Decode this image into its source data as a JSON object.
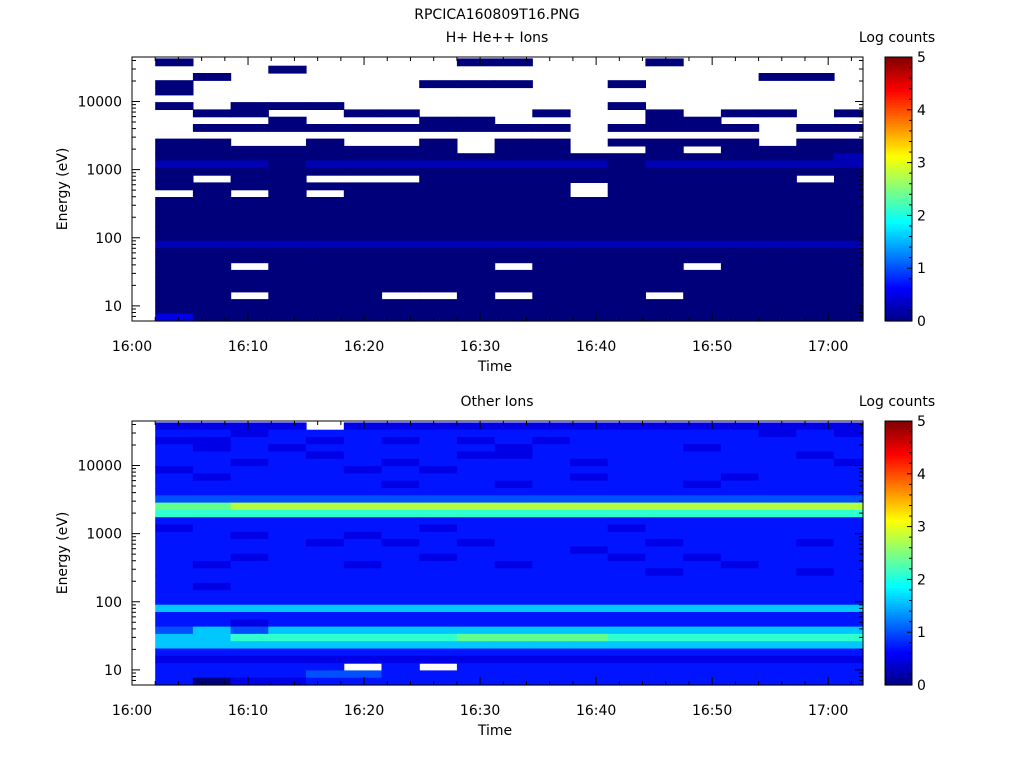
{
  "figure_title": "RPCICA160809T16.PNG",
  "chart_data": [
    {
      "type": "heatmap",
      "title": "H+ He++ Ions",
      "xlabel": "Time",
      "ylabel": "Energy (eV)",
      "yscale": "log",
      "x_ticks": [
        "16:00",
        "16:10",
        "16:20",
        "16:30",
        "16:40",
        "16:50",
        "17:00"
      ],
      "y_ticks": [
        "10",
        "100",
        "1000",
        "10000"
      ],
      "xlim": [
        "16:00",
        "17:03"
      ],
      "ylim": [
        6,
        45000
      ],
      "data_start": "16:02",
      "bin_minutes": 3.25,
      "colorbar": {
        "label": "Log counts",
        "ticks": [
          "0",
          "1",
          "2",
          "3",
          "4",
          "5"
        ],
        "range": [
          0,
          5
        ]
      },
      "time_bins": 19,
      "energy_bins": 36,
      "rows": [
        "1000000011000100000",
        "0001000000000000000",
        "0100000000000000110",
        "1000000111001000000",
        "1000000000000000000",
        "0000000000000000000",
        "1011100000001000000",
        "0110011000100101101",
        "0001000110000110000",
        "0111111111101111011",
        "0000000000000000000",
        "1100100101101111011",
        "1111111101100101111",
        "1111111111111111112",
        "2221222222221222222",
        "1111111111111111111",
        "1011000111111111101",
        "1111111111101111111",
        "0101011111101111111",
        "1111111111111111111",
        "1111111111111111111",
        "1111111111111111111",
        "1111111111111111111",
        "1111111111111111111",
        "1111111111111111111",
        "2222222222222222222",
        "1111111111111111111",
        "1111111111111111111",
        "1101111110111101111",
        "1111111111111111111",
        "1111111111111111111",
        "1111111111111111111",
        "1101110010111011111",
        "1111111111111111111",
        "1111111111111111111",
        "3111111111111111111"
      ]
    },
    {
      "type": "heatmap",
      "title": "Other Ions",
      "xlabel": "Time",
      "ylabel": "Energy (eV)",
      "yscale": "log",
      "x_ticks": [
        "16:00",
        "16:10",
        "16:20",
        "16:30",
        "16:40",
        "16:50",
        "17:00"
      ],
      "y_ticks": [
        "10",
        "100",
        "1000",
        "10000"
      ],
      "xlim": [
        "16:00",
        "17:03"
      ],
      "ylim": [
        6,
        45000
      ],
      "data_start": "16:02",
      "bin_minutes": 3.25,
      "colorbar": {
        "label": "Log counts",
        "ticks": [
          "0",
          "1",
          "2",
          "3",
          "4",
          "5"
        ],
        "range": [
          0,
          5
        ]
      },
      "time_bins": 19,
      "energy_bins": 36,
      "rows": [
        "3333033333333333333",
        "4434444444444444343",
        "3344343434344444444",
        "4343444443444434444",
        "4444344433444444434",
        "4434443444434444443",
        "3444434344444444444",
        "4344444444434443444",
        "4444443443444434444",
        "4444444444444444444",
        "5555555555555555555",
        "8899999999999999999",
        "7777777777777777777",
        "4444444444444444444",
        "3444444344443444444",
        "4434434444444444444",
        "4444343434444344434",
        "4444444444434444444",
        "4434444344443434444",
        "4344434443444443444",
        "4444444444444344434",
        "4444444444444444444",
        "4344444444444444444",
        "4444444444444444444",
        "4444444444444444444",
        "6666666666666666666",
        "4444444444444444444",
        "4434444444444444444",
        "5656666666666666666",
        "6677777788887777777",
        "6666666666666666666",
        "4444444444444444444",
        "3333333333333333333",
        "4444404044444444444",
        "4444554444444444444",
        "4133444444444444444"
      ]
    }
  ]
}
